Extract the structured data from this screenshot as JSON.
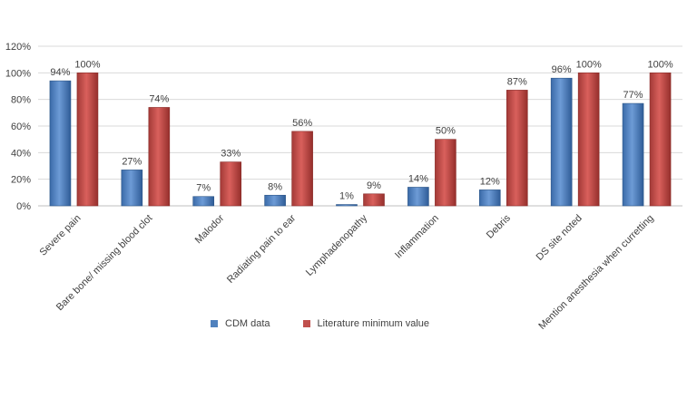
{
  "chart_data": {
    "type": "bar",
    "categories": [
      "Severe pain",
      "Bare bone/ missing blood clot",
      "Malodor",
      "Radiating pain to ear",
      "Lymphadenopathy",
      "Inflammation",
      "Debris",
      "DS site noted",
      "Mention anesthesia when curretting"
    ],
    "series": [
      {
        "name": "CDM data",
        "color": "#4f81bd",
        "values": [
          94,
          27,
          7,
          8,
          1,
          14,
          12,
          96,
          77
        ],
        "labels": [
          "94%",
          "27%",
          "7%",
          "8%",
          "1%",
          "14%",
          "12%",
          "96%",
          "77%"
        ]
      },
      {
        "name": "Literature minimum value",
        "color": "#c0504d",
        "values": [
          100,
          74,
          33,
          56,
          9,
          50,
          87,
          100,
          100
        ],
        "labels": [
          "100%",
          "74%",
          "33%",
          "56%",
          "9%",
          "50%",
          "87%",
          "100%",
          "100%"
        ]
      }
    ],
    "ylim": [
      0,
      120
    ],
    "yticks": [
      "0%",
      "20%",
      "40%",
      "60%",
      "80%",
      "100%",
      "120%"
    ],
    "grid": true,
    "legend_position": "bottom"
  }
}
